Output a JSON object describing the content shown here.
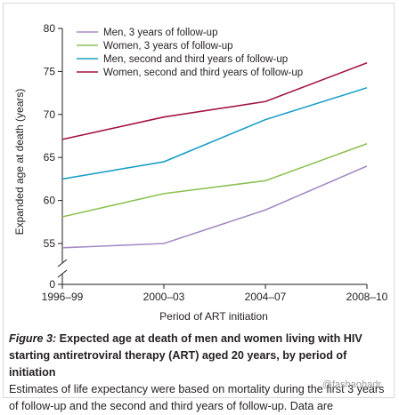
{
  "chart_data": {
    "type": "line",
    "categories": [
      "1996–99",
      "2000–03",
      "2004–07",
      "2008–10"
    ],
    "xlabel": "Period of ART initiation",
    "ylabel": "Expanded age at death (years)",
    "ylim": [
      55,
      80
    ],
    "yticks": [
      "0",
      "55",
      "60",
      "65",
      "70",
      "75",
      "80"
    ],
    "axis_break": true,
    "grid": false,
    "legend_position": "top-left",
    "series": [
      {
        "name": "Men, 3 years of follow-up",
        "color": "#a58bc4",
        "values": [
          54.5,
          55.0,
          58.9,
          64.0
        ]
      },
      {
        "name": "Women, 3 years of follow-up",
        "color": "#8cc152",
        "values": [
          58.1,
          60.8,
          62.3,
          66.6
        ]
      },
      {
        "name": "Men, second and third years of follow-up",
        "color": "#1ea0c8",
        "values": [
          62.5,
          64.5,
          69.4,
          73.1
        ]
      },
      {
        "name": "Women, second and third years of follow-up",
        "color": "#a3143f",
        "values": [
          67.1,
          69.7,
          71.5,
          76.0
        ]
      }
    ]
  },
  "caption": {
    "label": "Figure 3:",
    "title": " Expected age at death of men and women living with HIV starting antiretroviral therapy (ART) aged 20 years, by period of initiation",
    "body": "Estimates of life expectancy were based on mortality during the first 3 years of follow-up and the second and third years of follow-up. Data are",
    "watermark": "@fashaohadr"
  }
}
